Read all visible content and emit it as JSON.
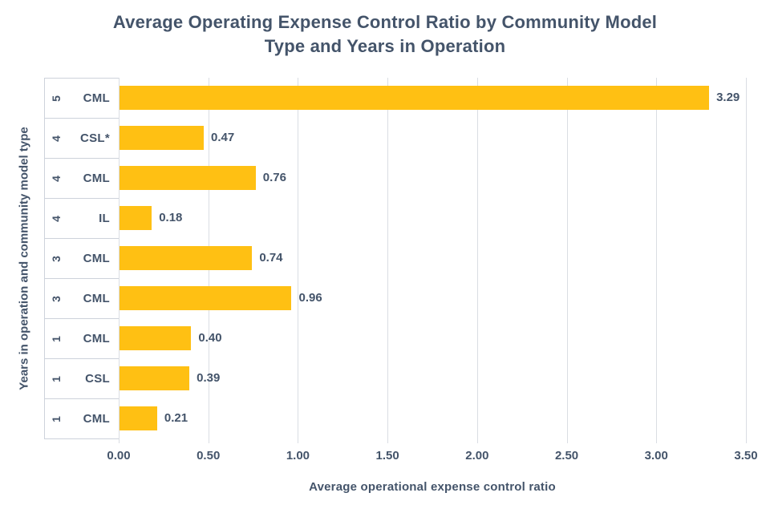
{
  "chart_data": {
    "type": "bar",
    "orientation": "horizontal",
    "title": "Average Operating Expense Control Ratio by Community Model Type and Years in Operation",
    "title_lines": [
      "Average Operating Expense Control Ratio by Community Model",
      "Type and Years in Operation"
    ],
    "xlabel": "Average operational expense control ratio",
    "ylabel": "Years in operation and community model type",
    "xlim": [
      0,
      3.5
    ],
    "xticks": [
      "0.00",
      "0.50",
      "1.00",
      "1.50",
      "2.00",
      "2.50",
      "3.00",
      "3.50"
    ],
    "grid": true,
    "legend_position": "none",
    "categories": [
      {
        "years": "5",
        "model": "CML"
      },
      {
        "years": "4",
        "model": "CSL*"
      },
      {
        "years": "4",
        "model": "CML"
      },
      {
        "years": "4",
        "model": "IL"
      },
      {
        "years": "3",
        "model": "CML"
      },
      {
        "years": "3",
        "model": "CML"
      },
      {
        "years": "1",
        "model": "CML"
      },
      {
        "years": "1",
        "model": "CSL"
      },
      {
        "years": "1",
        "model": "CML"
      }
    ],
    "values": [
      3.29,
      0.47,
      0.76,
      0.18,
      0.74,
      0.96,
      0.4,
      0.39,
      0.21
    ],
    "value_labels": [
      "3.29",
      "0.47",
      "0.76",
      "0.18",
      "0.74",
      "0.96",
      "0.40",
      "0.39",
      "0.21"
    ],
    "colors": {
      "bar": "#FFC013",
      "text": "#44546A",
      "gridline": "#DADDE3",
      "separator": "#CDD2DB",
      "background": "#FFFFFF"
    }
  }
}
